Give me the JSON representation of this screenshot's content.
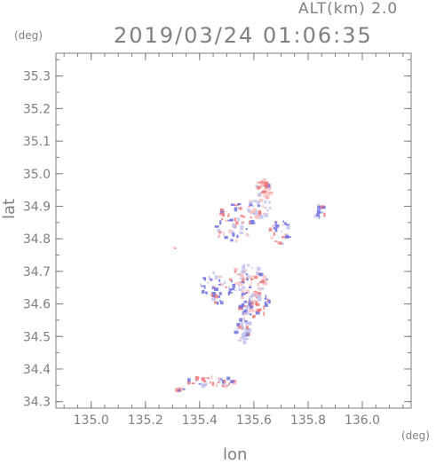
{
  "header": {
    "altitude_label": "ALT(km) 2.0",
    "datetime": "2019/03/24 01:06:35"
  },
  "axes": {
    "y_unit": "(deg)",
    "x_unit": "(deg)",
    "y_label": "lat",
    "x_label": "lon"
  },
  "chart_data": {
    "type": "heatmap",
    "xlim": [
      134.87,
      136.18
    ],
    "ylim": [
      34.28,
      35.37
    ],
    "x_ticks": [
      {
        "value": 135.0,
        "label": "135.0"
      },
      {
        "value": 135.2,
        "label": "135.2"
      },
      {
        "value": 135.4,
        "label": "135.4"
      },
      {
        "value": 135.6,
        "label": "135.6"
      },
      {
        "value": 135.8,
        "label": "135.8"
      },
      {
        "value": 136.0,
        "label": "136.0"
      }
    ],
    "y_ticks": [
      {
        "value": 34.3,
        "label": "34.3"
      },
      {
        "value": 34.4,
        "label": "34.4"
      },
      {
        "value": 34.5,
        "label": "34.5"
      },
      {
        "value": 34.6,
        "label": "34.6"
      },
      {
        "value": 34.7,
        "label": "34.7"
      },
      {
        "value": 34.8,
        "label": "34.8"
      },
      {
        "value": 34.9,
        "label": "34.9"
      },
      {
        "value": 35.0,
        "label": "35.0"
      },
      {
        "value": 35.1,
        "label": "35.1"
      },
      {
        "value": 35.2,
        "label": "35.2"
      },
      {
        "value": 35.3,
        "label": "35.3"
      }
    ],
    "minor_step": 0.05,
    "grid": false,
    "colors": {
      "frame": "#7f7f7f",
      "positive": "#f07a7a",
      "positive_light": "#f8c4c4",
      "negative": "#7070e0",
      "negative_light": "#c4c4f0"
    },
    "echo_clusters": [
      {
        "lon": 135.64,
        "lat": 34.955,
        "rlon": 0.03,
        "rlat": 0.03,
        "n": 40,
        "sign": "pos",
        "strength": "light"
      },
      {
        "lon": 135.62,
        "lat": 34.9,
        "rlon": 0.04,
        "rlat": 0.04,
        "n": 40,
        "sign": "mix",
        "strength": "light"
      },
      {
        "lon": 135.52,
        "lat": 34.85,
        "rlon": 0.08,
        "rlat": 0.06,
        "n": 55,
        "sign": "mix",
        "strength": "strong"
      },
      {
        "lon": 135.7,
        "lat": 34.82,
        "rlon": 0.04,
        "rlat": 0.04,
        "n": 25,
        "sign": "mix",
        "strength": "strong"
      },
      {
        "lon": 135.84,
        "lat": 34.885,
        "rlon": 0.03,
        "rlat": 0.02,
        "n": 14,
        "sign": "mix",
        "strength": "strong"
      },
      {
        "lon": 135.58,
        "lat": 34.67,
        "rlon": 0.07,
        "rlat": 0.05,
        "n": 70,
        "sign": "mix",
        "strength": "light"
      },
      {
        "lon": 135.46,
        "lat": 34.65,
        "rlon": 0.06,
        "rlat": 0.05,
        "n": 40,
        "sign": "neg",
        "strength": "strong"
      },
      {
        "lon": 135.6,
        "lat": 34.6,
        "rlon": 0.06,
        "rlat": 0.04,
        "n": 55,
        "sign": "mix",
        "strength": "strong"
      },
      {
        "lon": 135.56,
        "lat": 34.52,
        "rlon": 0.03,
        "rlat": 0.04,
        "n": 35,
        "sign": "neg",
        "strength": "light"
      },
      {
        "lon": 135.45,
        "lat": 34.36,
        "rlon": 0.1,
        "rlat": 0.015,
        "n": 40,
        "sign": "mix",
        "strength": "strong"
      },
      {
        "lon": 135.31,
        "lat": 34.77,
        "rlon": 0.005,
        "rlat": 0.005,
        "n": 2,
        "sign": "pos",
        "strength": "strong"
      },
      {
        "lon": 135.33,
        "lat": 34.335,
        "rlon": 0.02,
        "rlat": 0.005,
        "n": 5,
        "sign": "pos",
        "strength": "strong"
      }
    ]
  }
}
